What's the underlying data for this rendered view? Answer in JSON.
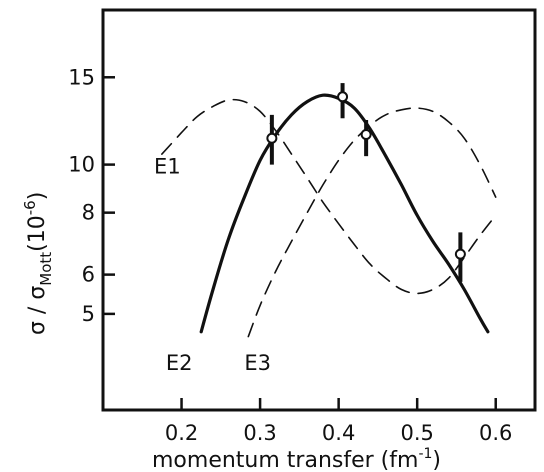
{
  "chart_data": {
    "type": "line",
    "title": "",
    "xlabel": "momentum transfer (fm",
    "xlabel_sup": "-1",
    "xlabel_close": ")",
    "ylabel_main": "σ / σ",
    "ylabel_sub": "Mott",
    "ylabel_unit_open": "(10",
    "ylabel_unit_sup": "-6",
    "ylabel_unit_close": ")",
    "xlim": [
      0.1,
      0.65
    ],
    "ylim": [
      3.2,
      20.5
    ],
    "y_scale": "log",
    "x_ticks": [
      "0.2",
      "0.3",
      "0.4",
      "0.5",
      "0.6"
    ],
    "y_ticks": [
      "5",
      "6",
      "8",
      "10",
      "15"
    ],
    "y_tick_values": [
      5,
      6,
      8,
      10,
      15
    ],
    "grid": false,
    "legend": "none",
    "series": [
      {
        "name": "E1",
        "style": "dashed",
        "x": [
          0.175,
          0.2,
          0.22,
          0.24,
          0.26,
          0.28,
          0.3,
          0.32,
          0.34,
          0.36,
          0.38,
          0.4,
          0.42,
          0.44,
          0.46,
          0.48,
          0.5,
          0.52,
          0.54,
          0.56,
          0.58,
          0.6
        ],
        "y": [
          10.5,
          11.6,
          12.5,
          13.1,
          13.5,
          13.4,
          12.8,
          11.7,
          10.5,
          9.4,
          8.4,
          7.6,
          6.9,
          6.3,
          5.9,
          5.6,
          5.5,
          5.6,
          5.9,
          6.5,
          7.2,
          7.9
        ]
      },
      {
        "name": "E2",
        "style": "solid",
        "x": [
          0.225,
          0.24,
          0.26,
          0.28,
          0.3,
          0.32,
          0.34,
          0.36,
          0.38,
          0.4,
          0.42,
          0.44,
          0.46,
          0.48,
          0.5,
          0.52,
          0.54,
          0.56,
          0.58,
          0.59
        ],
        "y": [
          4.6,
          5.6,
          7.1,
          8.6,
          10.2,
          11.5,
          12.6,
          13.4,
          13.8,
          13.6,
          13.0,
          11.8,
          10.4,
          9.1,
          7.9,
          7.0,
          6.3,
          5.6,
          4.9,
          4.6
        ]
      },
      {
        "name": "E3",
        "style": "dashed",
        "x": [
          0.285,
          0.3,
          0.32,
          0.34,
          0.36,
          0.38,
          0.4,
          0.42,
          0.44,
          0.46,
          0.48,
          0.5,
          0.52,
          0.54,
          0.56,
          0.58,
          0.6
        ],
        "y": [
          4.5,
          5.2,
          6.1,
          7.0,
          8.0,
          9.1,
          10.2,
          11.2,
          12.0,
          12.6,
          12.9,
          13.0,
          12.8,
          12.2,
          11.3,
          10.0,
          8.6
        ]
      }
    ],
    "measurements": [
      {
        "x": 0.315,
        "y": 11.3,
        "ylow": 10.0,
        "yhigh": 12.6
      },
      {
        "x": 0.405,
        "y": 13.7,
        "ylow": 12.4,
        "yhigh": 14.6
      },
      {
        "x": 0.435,
        "y": 11.5,
        "ylow": 10.4,
        "yhigh": 12.3
      },
      {
        "x": 0.555,
        "y": 6.6,
        "ylow": 5.8,
        "yhigh": 7.3
      }
    ],
    "curve_labels": [
      {
        "text": "E1",
        "x": 0.165,
        "y": 9.6
      },
      {
        "text": "E2",
        "x": 0.18,
        "y": 3.85
      },
      {
        "text": "E3",
        "x": 0.28,
        "y": 3.85
      }
    ]
  }
}
